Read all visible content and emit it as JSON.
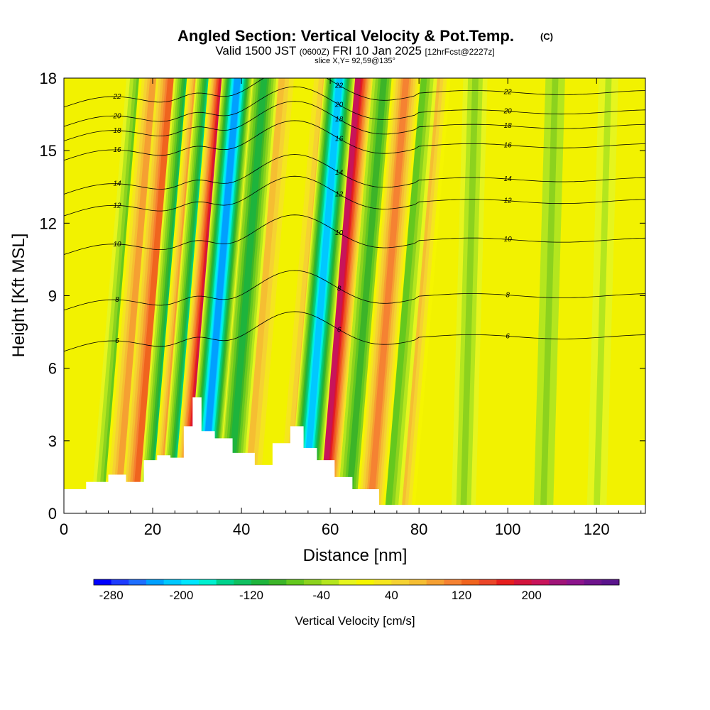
{
  "chart_data": {
    "type": "heatmap",
    "title": "Angled Section: Vertical Velocity & Pot.Temp.",
    "title_mark": "(C)",
    "subtitle_parts": [
      "Valid 1500 JST",
      "(0600Z)",
      "FRI 10 Jan 2025",
      "[12hrFcst@2227z]"
    ],
    "slice": "slice X,Y= 92,59@135°",
    "xlabel": "Distance [nm]",
    "ylabel": "Height [Kft MSL]",
    "xlim": [
      0,
      131
    ],
    "ylim": [
      0,
      18
    ],
    "x_ticks": [
      0,
      20,
      40,
      60,
      80,
      100,
      120
    ],
    "y_ticks": [
      0,
      3,
      6,
      9,
      12,
      15,
      18
    ],
    "colorbar": {
      "label": "Vertical Velocity [cm/s]",
      "range": [
        -300,
        300
      ],
      "tick_values": [
        -280,
        -200,
        -120,
        -40,
        40,
        120,
        200
      ],
      "colors": [
        "#0000ff",
        "#1e3cff",
        "#1e6eff",
        "#00a0ff",
        "#00c8ff",
        "#00e6ff",
        "#00f0d0",
        "#00d28c",
        "#10c060",
        "#1eb43c",
        "#3cb428",
        "#64c81e",
        "#8cd21e",
        "#b4e61e",
        "#e6f51e",
        "#f5f500",
        "#f5e61e",
        "#f5d232",
        "#f5be32",
        "#f5a032",
        "#f58232",
        "#f0641e",
        "#eb4628",
        "#e61e1e",
        "#d2143c",
        "#c8145a",
        "#a01478",
        "#8c148c",
        "#6e148c",
        "#5a148c"
      ]
    },
    "updraft_bands_cm_s": [
      {
        "x": 12,
        "peak": 90
      },
      {
        "x": 16,
        "peak": 120
      },
      {
        "x": 23,
        "peak": 150
      },
      {
        "x": 28,
        "peak": 210
      },
      {
        "x": 33,
        "peak": 70
      },
      {
        "x": 41,
        "peak": 60
      },
      {
        "x": 51,
        "peak": 60
      },
      {
        "x": 58,
        "peak": 200
      },
      {
        "x": 69,
        "peak": 110
      },
      {
        "x": 76,
        "peak": 70
      }
    ],
    "downdraft_bands_cm_s": [
      {
        "x": 9,
        "peak": -70
      },
      {
        "x": 20,
        "peak": -140
      },
      {
        "x": 25,
        "peak": -150
      },
      {
        "x": 31,
        "peak": -230
      },
      {
        "x": 37,
        "peak": -110
      },
      {
        "x": 54,
        "peak": -210
      },
      {
        "x": 64,
        "peak": -100
      },
      {
        "x": 73,
        "peak": -80
      },
      {
        "x": 90,
        "peak": -50
      },
      {
        "x": 108,
        "peak": -45
      },
      {
        "x": 120,
        "peak": -40
      }
    ],
    "isentropes_C": [
      6,
      8,
      10,
      12,
      14,
      16,
      18,
      20,
      22
    ],
    "terrain_kft": {
      "x": [
        0,
        5,
        10,
        14,
        18,
        21,
        24,
        27,
        29,
        31,
        34,
        38,
        43,
        47,
        51,
        54,
        57,
        61,
        65,
        71,
        131
      ],
      "top": [
        1.0,
        1.3,
        1.6,
        1.3,
        2.2,
        2.4,
        2.3,
        3.6,
        4.8,
        3.4,
        3.1,
        2.5,
        2.0,
        2.9,
        3.6,
        2.7,
        2.2,
        1.5,
        1.0,
        0.35,
        0.35
      ]
    }
  }
}
